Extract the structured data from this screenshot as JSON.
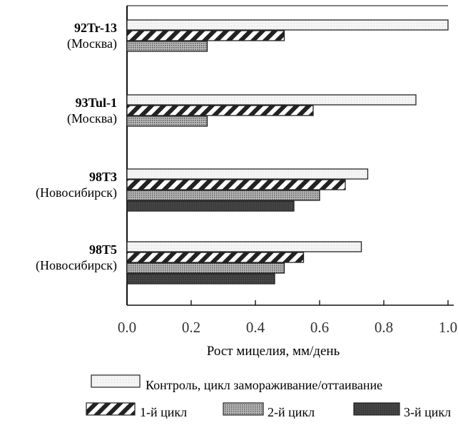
{
  "chart_data": {
    "type": "bar",
    "orientation": "horizontal",
    "xlabel": "Рост мицелия, мм/день",
    "xlim": [
      0,
      1.0
    ],
    "xticks": [
      "0.0",
      "0.2",
      "0.4",
      "0.6",
      "0.8",
      "1.0"
    ],
    "grid": false,
    "legend_position": "bottom",
    "categories": [
      {
        "name": "92Tr-13",
        "sub": "(Москва)"
      },
      {
        "name": "93Tul-1",
        "sub": "(Москва)"
      },
      {
        "name": "98T3",
        "sub": "(Новосибирск)"
      },
      {
        "name": "98T5",
        "sub": "(Новосибирск)"
      }
    ],
    "series": [
      {
        "name": "Контроль, цикл замораживание/оттаивание",
        "pattern": "plain",
        "values": [
          1.0,
          0.9,
          0.75,
          0.73
        ]
      },
      {
        "name": "1-й цикл",
        "pattern": "hatch",
        "values": [
          0.49,
          0.58,
          0.68,
          0.55
        ]
      },
      {
        "name": "2-й цикл",
        "pattern": "dots",
        "values": [
          0.25,
          0.25,
          0.6,
          0.49
        ]
      },
      {
        "name": "3-й цикл",
        "pattern": "dark",
        "values": [
          null,
          null,
          0.52,
          0.46
        ]
      }
    ],
    "legend_rows": [
      [
        0
      ],
      [
        1,
        2,
        3
      ]
    ]
  }
}
